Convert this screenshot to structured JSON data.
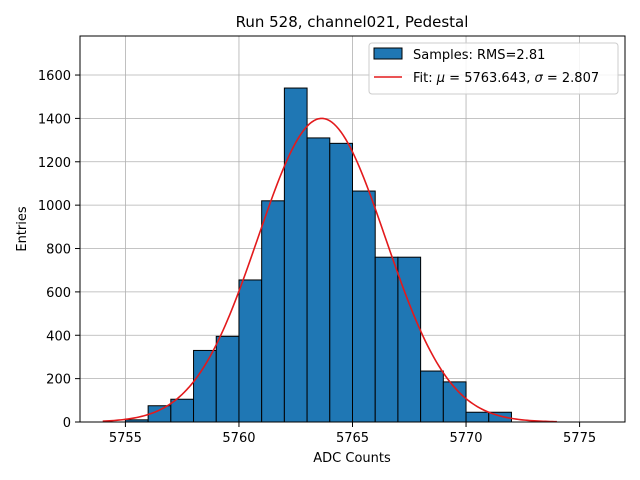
{
  "chart_data": {
    "type": "bar",
    "title": "Run 528, channel021, Pedestal",
    "xlabel": "ADC Counts",
    "ylabel": "Entries",
    "xlim": [
      5753.0,
      5777.0
    ],
    "ylim": [
      0,
      1780
    ],
    "xticks": [
      5755,
      5760,
      5765,
      5770,
      5775
    ],
    "yticks": [
      0,
      200,
      400,
      600,
      800,
      1000,
      1200,
      1400,
      1600
    ],
    "grid": true,
    "legend_position": "top-right",
    "bin_width": 1,
    "bin_edges": [
      5755,
      5756,
      5757,
      5758,
      5759,
      5760,
      5761,
      5762,
      5763,
      5764,
      5765,
      5766,
      5767,
      5768,
      5769,
      5770,
      5771,
      5772
    ],
    "counts": [
      10,
      75,
      105,
      330,
      395,
      655,
      1020,
      1540,
      1310,
      1285,
      1065,
      760,
      760,
      235,
      185,
      45,
      45
    ],
    "histogram_series": {
      "name": "Samples: RMS=2.81",
      "color": "#1f77b4",
      "edge_color": "#000000"
    },
    "fit": {
      "name_prefix": "Fit: ",
      "mu_symbol": "μ",
      "mu_value": " = 5763.643, ",
      "sigma_symbol": "σ",
      "sigma_value": " = 2.807",
      "mu": 5763.643,
      "sigma": 2.807,
      "amplitude": 1400,
      "x_range": [
        5754,
        5774
      ],
      "color": "#e31a1c"
    }
  }
}
